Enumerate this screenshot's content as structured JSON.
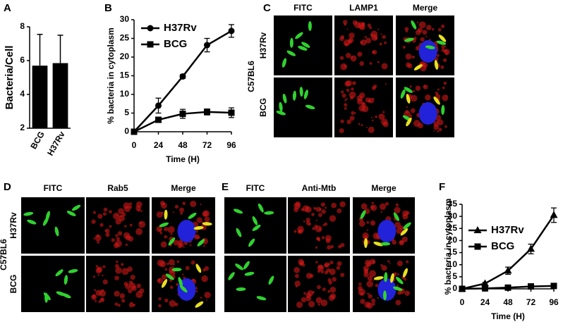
{
  "panel_labels": [
    "A",
    "B",
    "C",
    "D",
    "E",
    "F"
  ],
  "chart_data": [
    {
      "type": "bar",
      "ylabel": "Bacteria/Cell",
      "categories": [
        "BCG",
        "H37Rv"
      ],
      "values": [
        5.7,
        5.85
      ],
      "errors": [
        1.85,
        1.65
      ],
      "color": "#000000",
      "ylim": [
        2,
        8
      ],
      "yticks": [
        2,
        4,
        6,
        8
      ]
    },
    {
      "type": "line",
      "ylabel": "% bacteria in cytoplasm",
      "xlabel": "Time (H)",
      "x": [
        0,
        24,
        48,
        72,
        96
      ],
      "xlim": [
        0,
        96
      ],
      "xticks": [
        0,
        24,
        48,
        72,
        96
      ],
      "ylim": [
        0,
        30
      ],
      "yticks": [
        0,
        5,
        10,
        15,
        20,
        25,
        30
      ],
      "legend": "upper left",
      "series": [
        {
          "name": "H37Rv",
          "color": "#000000",
          "marker": "circle",
          "values": [
            0,
            7,
            14.8,
            23.2,
            27
          ],
          "errors": [
            0.3,
            2,
            0.5,
            1.8,
            1.7
          ]
        },
        {
          "name": "BCG",
          "color": "#000000",
          "marker": "square",
          "values": [
            0,
            3.2,
            4.8,
            5.3,
            5.1
          ],
          "errors": [
            0.3,
            0.6,
            1.2,
            0.8,
            1.3
          ]
        }
      ]
    },
    {
      "type": "line",
      "ylabel": "% bacteria in cytoplasm",
      "xlabel": "Time (H)",
      "x": [
        0,
        24,
        48,
        72,
        96
      ],
      "xlim": [
        0,
        96
      ],
      "xticks": [
        0,
        24,
        48,
        72,
        96
      ],
      "ylim": [
        0,
        35
      ],
      "yticks": [
        0,
        5,
        10,
        15,
        20,
        25,
        30,
        35
      ],
      "legend": "upper left",
      "series": [
        {
          "name": "H37Rv",
          "color": "#000000",
          "marker": "triangle",
          "values": [
            0,
            2.2,
            7.5,
            16.5,
            30.5
          ],
          "errors": [
            0.3,
            0.5,
            1.5,
            2,
            3
          ]
        },
        {
          "name": "BCG",
          "color": "#000000",
          "marker": "square",
          "values": [
            0,
            0.2,
            0.5,
            1,
            1.2
          ],
          "errors": [
            0.2,
            0.2,
            0.3,
            0.3,
            0.4
          ]
        }
      ]
    }
  ],
  "micrographs": [
    {
      "strain": "C57BL6",
      "columns": [
        "FITC",
        "LAMP1",
        "Merge"
      ],
      "rows": [
        "H37Rv",
        "BCG"
      ]
    },
    {
      "strain": "C57BL6",
      "columns": [
        "FITC",
        "Rab5",
        "Merge"
      ],
      "rows": [
        "H37Rv",
        "BCG"
      ]
    },
    {
      "columns": [
        "FITC",
        "Anti-Mtb",
        "Merge"
      ]
    }
  ]
}
